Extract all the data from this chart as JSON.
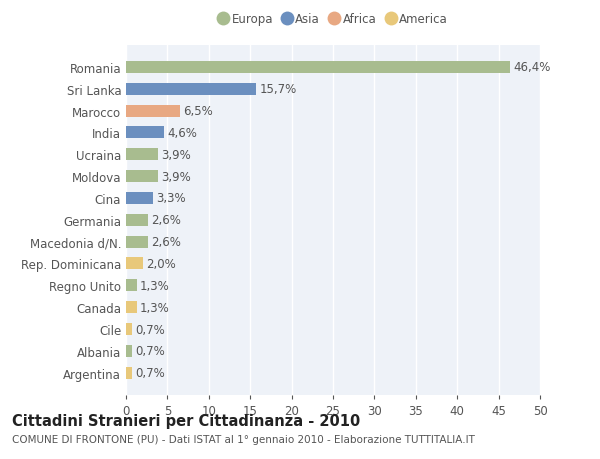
{
  "categories": [
    "Romania",
    "Sri Lanka",
    "Marocco",
    "India",
    "Ucraina",
    "Moldova",
    "Cina",
    "Germania",
    "Macedonia d/N.",
    "Rep. Dominicana",
    "Regno Unito",
    "Canada",
    "Cile",
    "Albania",
    "Argentina"
  ],
  "values": [
    46.4,
    15.7,
    6.5,
    4.6,
    3.9,
    3.9,
    3.3,
    2.6,
    2.6,
    2.0,
    1.3,
    1.3,
    0.7,
    0.7,
    0.7
  ],
  "labels": [
    "46,4%",
    "15,7%",
    "6,5%",
    "4,6%",
    "3,9%",
    "3,9%",
    "3,3%",
    "2,6%",
    "2,6%",
    "2,0%",
    "1,3%",
    "1,3%",
    "0,7%",
    "0,7%",
    "0,7%"
  ],
  "colors": [
    "#a8bc8f",
    "#6b8fbf",
    "#e8a882",
    "#6b8fbf",
    "#a8bc8f",
    "#a8bc8f",
    "#6b8fbf",
    "#a8bc8f",
    "#a8bc8f",
    "#e8c87a",
    "#a8bc8f",
    "#e8c87a",
    "#e8c87a",
    "#a8bc8f",
    "#e8c87a"
  ],
  "legend_labels": [
    "Europa",
    "Asia",
    "Africa",
    "America"
  ],
  "legend_colors": [
    "#a8bc8f",
    "#6b8fbf",
    "#e8a882",
    "#e8c87a"
  ],
  "title": "Cittadini Stranieri per Cittadinanza - 2010",
  "subtitle": "COMUNE DI FRONTONE (PU) - Dati ISTAT al 1° gennaio 2010 - Elaborazione TUTTITALIA.IT",
  "xlim": [
    0,
    50
  ],
  "xticks": [
    0,
    5,
    10,
    15,
    20,
    25,
    30,
    35,
    40,
    45,
    50
  ],
  "background_color": "#ffffff",
  "plot_bg_color": "#eef2f8",
  "grid_color": "#ffffff",
  "bar_height": 0.55,
  "label_fontsize": 8.5,
  "tick_fontsize": 8.5,
  "title_fontsize": 10.5,
  "subtitle_fontsize": 7.5,
  "text_color": "#555555"
}
